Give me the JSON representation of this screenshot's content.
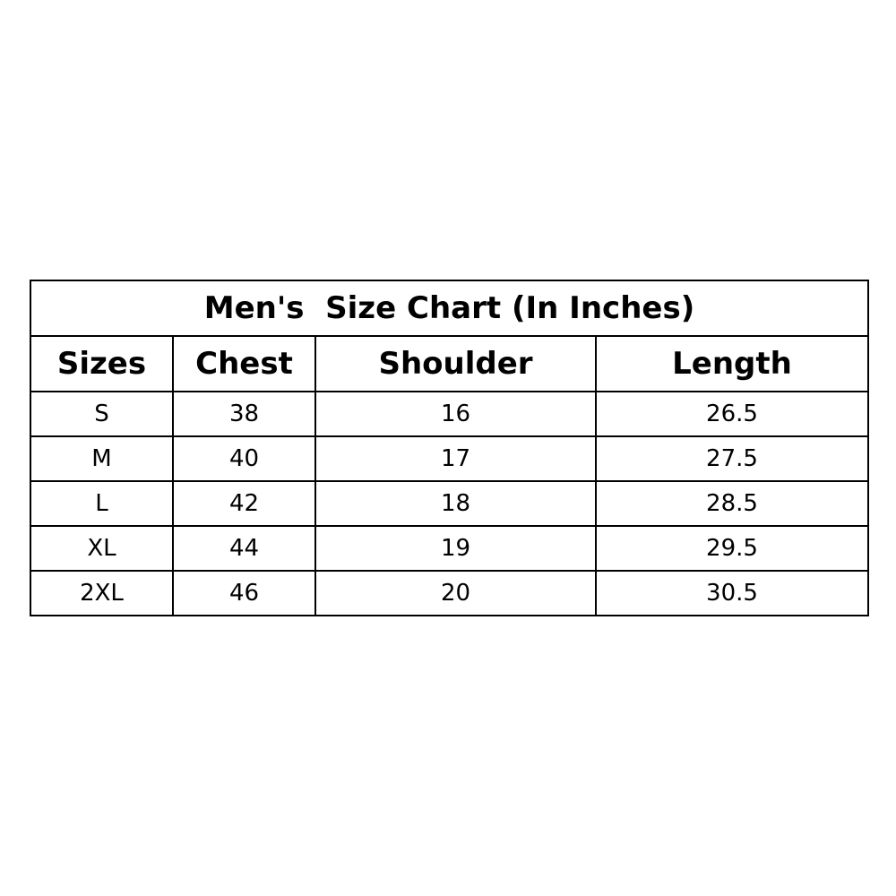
{
  "title": "Men's  Size Chart (In Inches)",
  "columns": [
    "Sizes",
    "Chest",
    "Shoulder",
    "Length"
  ],
  "rows": [
    [
      "S",
      "38",
      "16",
      "26.5"
    ],
    [
      "M",
      "40",
      "17",
      "27.5"
    ],
    [
      "L",
      "42",
      "18",
      "28.5"
    ],
    [
      "XL",
      "44",
      "19",
      "29.5"
    ],
    [
      "2XL",
      "46",
      "20",
      "30.5"
    ]
  ]
}
